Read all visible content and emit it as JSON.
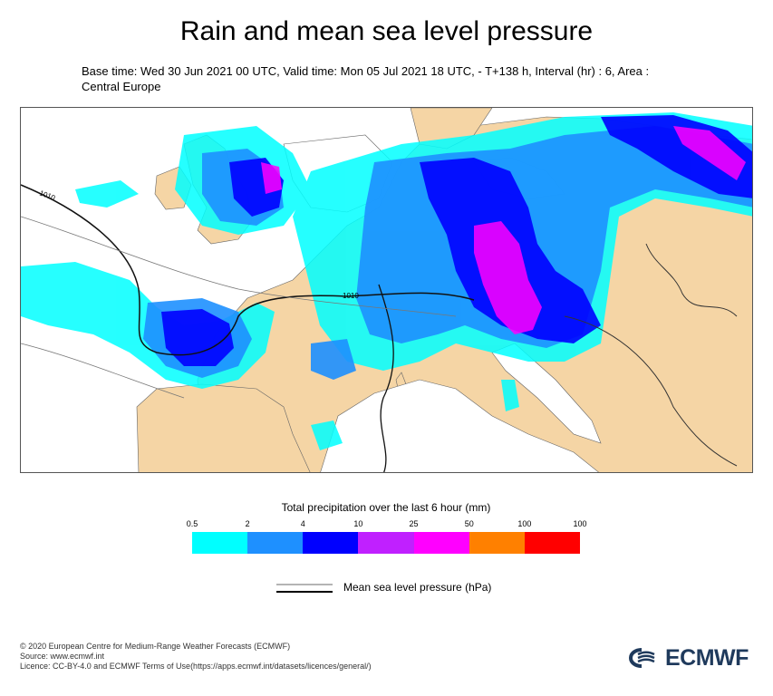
{
  "title": "Rain and mean sea level pressure",
  "subtitle": "Base time: Wed 30 Jun 2021 00 UTC, Valid time: Mon 05 Jul 2021 18 UTC, - T+138 h, Interval (hr) : 6, Area : Central Europe",
  "map": {
    "region": "Central Europe",
    "contour_labels": [
      "1010",
      "1010"
    ],
    "colors": {
      "sea": "#ffffff",
      "land": "#f5d5a5",
      "border": "#555555"
    }
  },
  "legend": {
    "title": "Total precipitation over the last 6 hour (mm)",
    "ticks": [
      "0.5",
      "2",
      "4",
      "10",
      "25",
      "50",
      "100",
      "100"
    ],
    "colors": [
      "#00ffff",
      "#1e90ff",
      "#0000ff",
      "#c020ff",
      "#ff00ff",
      "#ff8000",
      "#ff0000"
    ]
  },
  "msl_label": "Mean sea level pressure (hPa)",
  "footer": {
    "copyright": "© 2020 European Centre for Medium-Range Weather Forecasts (ECMWF)",
    "source": "Source: www.ecmwf.int",
    "licence": "Licence: CC-BY-4.0 and ECMWF Terms of Use(https://apps.ecmwf.int/datasets/licences/general/)"
  },
  "logo": "ECMWF"
}
